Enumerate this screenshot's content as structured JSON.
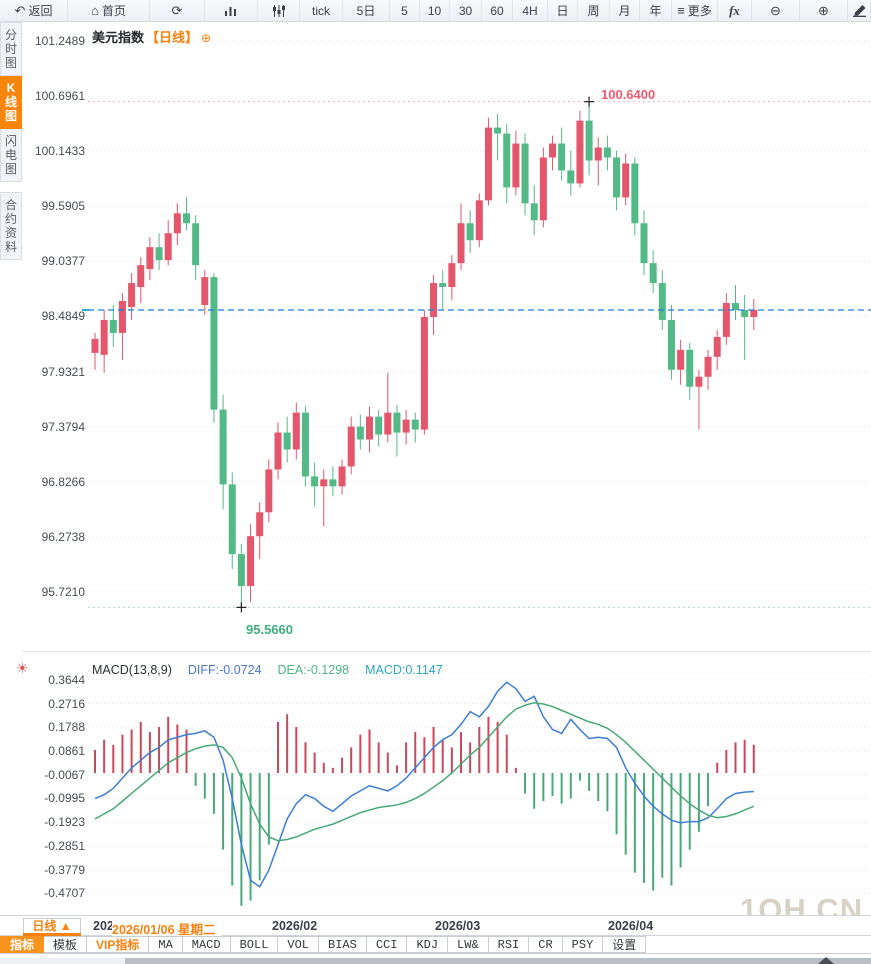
{
  "toolbar": {
    "items": [
      {
        "name": "back",
        "icon": "back-icon",
        "label": "返回"
      },
      {
        "name": "home",
        "icon": "home-icon",
        "label": "首页"
      },
      {
        "name": "refresh",
        "icon": "refresh-icon",
        "label": ""
      },
      {
        "name": "chart-type",
        "icon": "bar-chart-icon",
        "label": ""
      },
      {
        "name": "kline-style",
        "icon": "candle-sliders-icon",
        "label": ""
      },
      {
        "name": "tick",
        "label": "tick"
      },
      {
        "name": "5d",
        "label": "5日"
      },
      {
        "name": "5min",
        "label": "5"
      },
      {
        "name": "10min",
        "label": "10"
      },
      {
        "name": "30min",
        "label": "30"
      },
      {
        "name": "60min",
        "label": "60"
      },
      {
        "name": "4h",
        "label": "4H"
      },
      {
        "name": "day",
        "label": "日"
      },
      {
        "name": "week",
        "label": "周"
      },
      {
        "name": "month",
        "label": "月"
      },
      {
        "name": "year",
        "label": "年"
      },
      {
        "name": "more",
        "icon": "menu-icon",
        "label": "更多"
      },
      {
        "name": "fx",
        "label": "fx"
      },
      {
        "name": "zoom-out",
        "icon": "zoom-out-icon",
        "label": ""
      },
      {
        "name": "zoom-in",
        "icon": "zoom-in-icon",
        "label": ""
      },
      {
        "name": "draw",
        "icon": "pen-icon",
        "label": ""
      }
    ]
  },
  "sidebar": {
    "items": [
      {
        "label": "分时图",
        "active": false
      },
      {
        "label": "K线图",
        "active": true
      },
      {
        "label": "闪电图",
        "active": false
      },
      {
        "label": "合约资料",
        "active": false
      }
    ]
  },
  "price_pane": {
    "title": "美元指数",
    "period_tag": "【日线】",
    "add_icon": "⊕"
  },
  "macd_pane": {
    "name_label": "MACD(13,8,9)",
    "diff_label": "DIFF:-0.0724",
    "dea_label": "DEA:-0.1298",
    "macd_label": "MACD:0.1147"
  },
  "xaxis": {
    "period_button": "日线 ▲",
    "crosshair_date": "2026/01/06 星期二",
    "ticks": [
      "2026/01",
      "2026/02",
      "2026/03",
      "2026/04"
    ]
  },
  "tabs": [
    {
      "label": "指标",
      "active": true
    },
    {
      "label": "模板"
    },
    {
      "label": "VIP指标",
      "vip": true
    },
    {
      "label": "MA"
    },
    {
      "label": "MACD"
    },
    {
      "label": "BOLL"
    },
    {
      "label": "VOL"
    },
    {
      "label": "BIAS"
    },
    {
      "label": "CCI"
    },
    {
      "label": "KDJ"
    },
    {
      "label": "LW&"
    },
    {
      "label": "RSI"
    },
    {
      "label": "CR"
    },
    {
      "label": "PSY"
    },
    {
      "label": "设置"
    }
  ],
  "watermark": "1QH.CN",
  "colors": {
    "up": "#e4566b",
    "down": "#53b987",
    "accent_orange": "#f78212",
    "price_line": "#1b7ce0",
    "diff_line": "#3d7dd2",
    "dea_line": "#47a877",
    "hist_up": "#c9485a",
    "hist_down": "#4aa87c",
    "high_text": "#f05a6e",
    "low_text": "#3fae7a",
    "grid": "#e3e6ea"
  },
  "chart_data": [
    {
      "type": "candlestick",
      "title": "美元指数 日线",
      "y_ticks": [
        101.2489,
        100.6961,
        100.1433,
        99.5905,
        99.0377,
        98.4849,
        97.9321,
        97.3794,
        96.8266,
        96.2738,
        95.721
      ],
      "x_ticks": [
        "2026/01",
        "2026/02",
        "2026/03",
        "2026/04"
      ],
      "high": {
        "index": 54,
        "price": 100.64,
        "label": "100.6400"
      },
      "low": {
        "index": 16,
        "price": 95.566,
        "label": "95.5660"
      },
      "last_close": 98.55,
      "candles_ohlc": [
        [
          98.12,
          98.32,
          97.95,
          98.26
        ],
        [
          98.1,
          98.55,
          97.92,
          98.45
        ],
        [
          98.45,
          98.6,
          98.18,
          98.32
        ],
        [
          98.32,
          98.72,
          98.05,
          98.64
        ],
        [
          98.58,
          98.92,
          98.45,
          98.82
        ],
        [
          98.78,
          99.08,
          98.62,
          99.0
        ],
        [
          98.96,
          99.28,
          98.85,
          99.18
        ],
        [
          99.18,
          99.32,
          98.95,
          99.05
        ],
        [
          99.05,
          99.45,
          99.0,
          99.32
        ],
        [
          99.32,
          99.62,
          99.2,
          99.52
        ],
        [
          99.52,
          99.68,
          99.35,
          99.42
        ],
        [
          99.42,
          99.5,
          98.85,
          99.0
        ],
        [
          98.6,
          98.95,
          98.5,
          98.88
        ],
        [
          98.88,
          98.92,
          97.42,
          97.55
        ],
        [
          97.55,
          97.7,
          96.55,
          96.8
        ],
        [
          96.8,
          96.92,
          95.95,
          96.1
        ],
        [
          96.1,
          96.2,
          95.566,
          95.78
        ],
        [
          95.78,
          96.4,
          95.62,
          96.28
        ],
        [
          96.28,
          96.62,
          96.05,
          96.52
        ],
        [
          96.52,
          97.05,
          96.42,
          96.95
        ],
        [
          96.95,
          97.42,
          96.85,
          97.32
        ],
        [
          97.32,
          97.48,
          97.02,
          97.15
        ],
        [
          97.15,
          97.62,
          97.05,
          97.52
        ],
        [
          97.52,
          97.58,
          96.78,
          96.88
        ],
        [
          96.88,
          97.02,
          96.58,
          96.78
        ],
        [
          96.78,
          96.95,
          96.38,
          96.85
        ],
        [
          96.85,
          96.98,
          96.68,
          96.78
        ],
        [
          96.78,
          97.05,
          96.7,
          96.98
        ],
        [
          96.98,
          97.48,
          96.9,
          97.38
        ],
        [
          97.38,
          97.5,
          97.15,
          97.25
        ],
        [
          97.25,
          97.58,
          97.12,
          97.48
        ],
        [
          97.48,
          97.55,
          97.18,
          97.3
        ],
        [
          97.3,
          97.92,
          97.22,
          97.52
        ],
        [
          97.52,
          97.6,
          97.08,
          97.32
        ],
        [
          97.32,
          97.55,
          97.2,
          97.45
        ],
        [
          97.45,
          97.52,
          97.22,
          97.35
        ],
        [
          97.35,
          98.55,
          97.3,
          98.48
        ],
        [
          98.48,
          98.9,
          98.3,
          98.82
        ],
        [
          98.82,
          98.95,
          98.55,
          98.78
        ],
        [
          98.78,
          99.1,
          98.65,
          99.02
        ],
        [
          99.02,
          99.62,
          98.95,
          99.42
        ],
        [
          99.42,
          99.55,
          99.12,
          99.25
        ],
        [
          99.25,
          99.72,
          99.18,
          99.65
        ],
        [
          99.65,
          100.48,
          99.6,
          100.38
        ],
        [
          100.38,
          100.52,
          100.05,
          100.32
        ],
        [
          100.32,
          100.42,
          99.62,
          99.78
        ],
        [
          99.78,
          100.35,
          99.7,
          100.22
        ],
        [
          100.22,
          100.32,
          99.5,
          99.62
        ],
        [
          99.62,
          99.8,
          99.3,
          99.45
        ],
        [
          99.45,
          100.18,
          99.38,
          100.08
        ],
        [
          100.08,
          100.3,
          99.95,
          100.22
        ],
        [
          100.22,
          100.38,
          99.85,
          99.95
        ],
        [
          99.95,
          100.15,
          99.7,
          99.82
        ],
        [
          99.82,
          100.55,
          99.78,
          100.45
        ],
        [
          100.45,
          100.64,
          99.9,
          100.05
        ],
        [
          100.05,
          100.28,
          99.8,
          100.18
        ],
        [
          100.18,
          100.3,
          99.95,
          100.08
        ],
        [
          100.08,
          100.15,
          99.55,
          99.68
        ],
        [
          99.68,
          100.12,
          99.6,
          100.02
        ],
        [
          100.02,
          100.08,
          99.3,
          99.42
        ],
        [
          99.42,
          99.55,
          98.9,
          99.02
        ],
        [
          99.02,
          99.15,
          98.72,
          98.82
        ],
        [
          98.82,
          98.95,
          98.35,
          98.45
        ],
        [
          98.45,
          98.6,
          97.85,
          97.95
        ],
        [
          97.95,
          98.25,
          97.8,
          98.15
        ],
        [
          98.15,
          98.22,
          97.65,
          97.78
        ],
        [
          97.78,
          97.95,
          97.35,
          97.88
        ],
        [
          97.88,
          98.15,
          97.75,
          98.08
        ],
        [
          98.08,
          98.35,
          97.95,
          98.28
        ],
        [
          98.28,
          98.72,
          98.2,
          98.62
        ],
        [
          98.62,
          98.8,
          98.45,
          98.55
        ],
        [
          98.55,
          98.7,
          98.05,
          98.48
        ],
        [
          98.48,
          98.66,
          98.35,
          98.55
        ]
      ]
    },
    {
      "type": "bar",
      "title": "MACD(13,8,9)",
      "diff": -0.0724,
      "dea": -0.1298,
      "macd": 0.1147,
      "y_ticks": [
        0.3644,
        0.2716,
        0.1788,
        0.0861,
        -0.0067,
        -0.0995,
        -0.1923,
        -0.2851,
        -0.3779,
        -0.4707
      ],
      "histogram": [
        0.09,
        0.13,
        0.11,
        0.15,
        0.17,
        0.2,
        0.16,
        0.18,
        0.22,
        0.19,
        0.17,
        -0.05,
        -0.1,
        -0.16,
        -0.3,
        -0.44,
        -0.52,
        -0.5,
        -0.42,
        -0.28,
        0.2,
        0.23,
        0.18,
        0.12,
        0.08,
        0.04,
        0.02,
        0.06,
        0.1,
        0.15,
        0.17,
        0.12,
        0.08,
        0.03,
        0.12,
        0.16,
        0.14,
        0.18,
        0.13,
        0.1,
        0.16,
        0.12,
        0.18,
        0.22,
        0.2,
        0.15,
        0.02,
        -0.08,
        -0.14,
        -0.11,
        -0.09,
        -0.12,
        -0.1,
        -0.03,
        -0.07,
        -0.11,
        -0.15,
        -0.24,
        -0.32,
        -0.39,
        -0.43,
        -0.46,
        -0.41,
        -0.44,
        -0.37,
        -0.3,
        -0.23,
        -0.13,
        0.04,
        0.09,
        0.12,
        0.13,
        0.11
      ],
      "series": [
        {
          "name": "DIFF",
          "values": [
            -0.1,
            -0.085,
            -0.06,
            -0.02,
            0.02,
            0.05,
            0.08,
            0.1,
            0.13,
            0.14,
            0.15,
            0.155,
            0.165,
            0.14,
            0.05,
            -0.1,
            -0.28,
            -0.42,
            -0.445,
            -0.38,
            -0.28,
            -0.18,
            -0.12,
            -0.085,
            -0.1,
            -0.13,
            -0.15,
            -0.12,
            -0.09,
            -0.07,
            -0.05,
            -0.06,
            -0.07,
            -0.05,
            -0.02,
            0.02,
            0.06,
            0.1,
            0.13,
            0.15,
            0.19,
            0.24,
            0.22,
            0.26,
            0.32,
            0.355,
            0.33,
            0.28,
            0.3,
            0.22,
            0.17,
            0.155,
            0.21,
            0.17,
            0.135,
            0.14,
            0.135,
            0.1,
            0.02,
            -0.04,
            -0.09,
            -0.13,
            -0.16,
            -0.185,
            -0.195,
            -0.19,
            -0.19,
            -0.175,
            -0.14,
            -0.1,
            -0.08,
            -0.075,
            -0.0724
          ]
        },
        {
          "name": "DEA",
          "values": [
            -0.18,
            -0.16,
            -0.14,
            -0.11,
            -0.08,
            -0.05,
            -0.02,
            0.01,
            0.04,
            0.06,
            0.08,
            0.095,
            0.105,
            0.11,
            0.1,
            0.06,
            -0.02,
            -0.12,
            -0.2,
            -0.25,
            -0.265,
            -0.26,
            -0.25,
            -0.235,
            -0.22,
            -0.21,
            -0.2,
            -0.185,
            -0.17,
            -0.155,
            -0.145,
            -0.135,
            -0.13,
            -0.125,
            -0.115,
            -0.1,
            -0.08,
            -0.055,
            -0.03,
            0.0,
            0.035,
            0.07,
            0.1,
            0.14,
            0.18,
            0.22,
            0.25,
            0.265,
            0.275,
            0.27,
            0.26,
            0.245,
            0.23,
            0.215,
            0.2,
            0.19,
            0.175,
            0.15,
            0.12,
            0.085,
            0.05,
            0.015,
            -0.02,
            -0.055,
            -0.09,
            -0.12,
            -0.145,
            -0.165,
            -0.175,
            -0.17,
            -0.16,
            -0.145,
            -0.1298
          ]
        }
      ]
    }
  ]
}
